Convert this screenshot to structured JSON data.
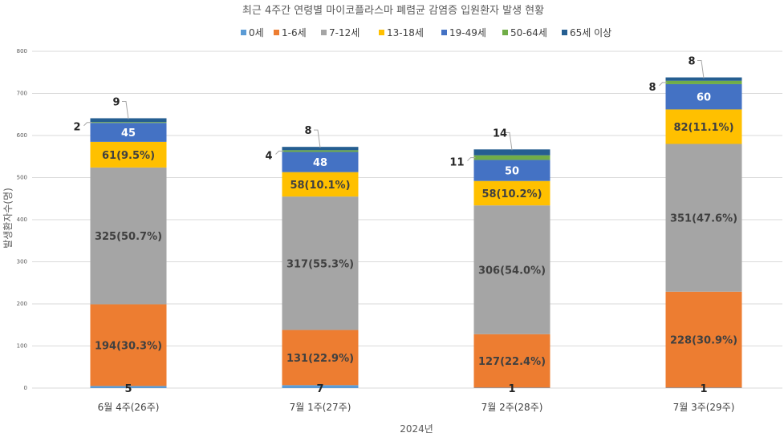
{
  "chart_data": {
    "type": "bar",
    "stacked": true,
    "title": "최근 4주간 연령별 마이코플라스마 폐렴균 감염증 입원환자 발생 현황",
    "xlabel": "2024년",
    "ylabel": "발생환자수(명)",
    "ylim": [
      0,
      800
    ],
    "yticks": [
      "0",
      "100",
      "200",
      "300",
      "400",
      "500",
      "600",
      "700",
      "800"
    ],
    "grid": true,
    "legend_position": "top",
    "categories": [
      "6월 4주(26주)",
      "7월 1주(27주)",
      "7월 2주(28주)",
      "7월 3주(29주)"
    ],
    "series": [
      {
        "name": "0세",
        "color": "#5B9BD5",
        "values": [
          5,
          7,
          1,
          1
        ],
        "labels": [
          "5",
          "7",
          "1",
          "1"
        ]
      },
      {
        "name": "1-6세",
        "color": "#ED7D31",
        "values": [
          194,
          131,
          127,
          228
        ],
        "labels": [
          "194(30.3%)",
          "131(22.9%)",
          "127(22.4%)",
          "228(30.9%)"
        ]
      },
      {
        "name": "7-12세",
        "color": "#A5A5A5",
        "values": [
          325,
          317,
          306,
          351
        ],
        "labels": [
          "325(50.7%)",
          "317(55.3%)",
          "306(54.0%)",
          "351(47.6%)"
        ]
      },
      {
        "name": "13-18세",
        "color": "#FFC000",
        "values": [
          61,
          58,
          58,
          82
        ],
        "labels": [
          "61(9.5%)",
          "58(10.1%)",
          "58(10.2%)",
          "82(11.1%)"
        ]
      },
      {
        "name": "19-49세",
        "color": "#4472C4",
        "values": [
          45,
          48,
          50,
          60
        ],
        "labels": [
          "45",
          "48",
          "50",
          "60"
        ]
      },
      {
        "name": "50-64세",
        "color": "#70AD47",
        "values": [
          2,
          4,
          11,
          8
        ],
        "labels": [
          "2",
          "4",
          "11",
          "8"
        ]
      },
      {
        "name": "65세 이상",
        "color": "#255E91",
        "values": [
          9,
          8,
          14,
          8
        ],
        "labels": [
          "9",
          "8",
          "14",
          "8"
        ]
      }
    ]
  }
}
